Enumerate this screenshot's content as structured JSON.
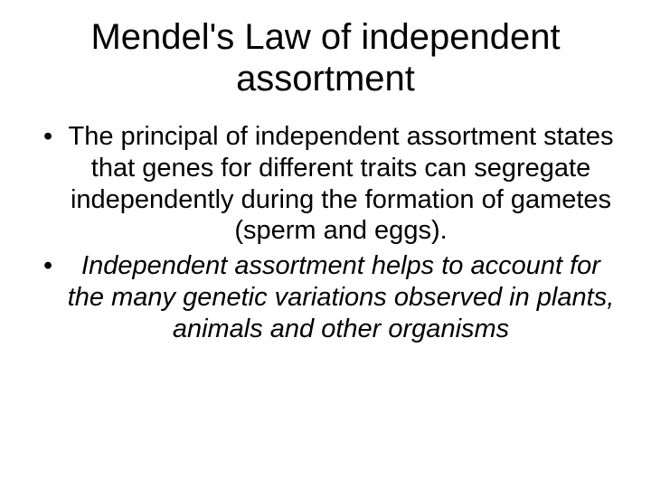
{
  "slide": {
    "title": "Mendel's Law of independent assortment",
    "bullets": [
      {
        "text": "The principal of independent assortment states that genes for different traits can segregate independently during the formation of gametes (sperm and eggs).",
        "italic": false
      },
      {
        "text": "Independent assortment helps to account for the many genetic variations observed in plants, animals and other organisms",
        "italic": true
      }
    ]
  },
  "style": {
    "background_color": "#ffffff",
    "text_color": "#000000",
    "title_fontsize": 40,
    "body_fontsize": 29,
    "bullet_marker": "•"
  }
}
